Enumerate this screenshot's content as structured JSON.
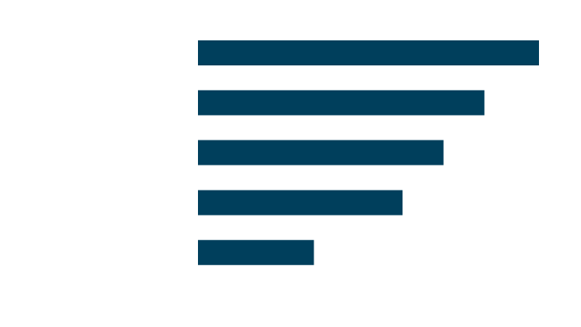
{
  "chart_data": {
    "type": "bar",
    "orientation": "horizontal",
    "categories": [
      null,
      null,
      null,
      null,
      null
    ],
    "values": [
      100,
      84,
      72,
      60,
      34
    ],
    "color": "#003f5c",
    "xlim": [
      0,
      100
    ],
    "tick_labels": false
  }
}
